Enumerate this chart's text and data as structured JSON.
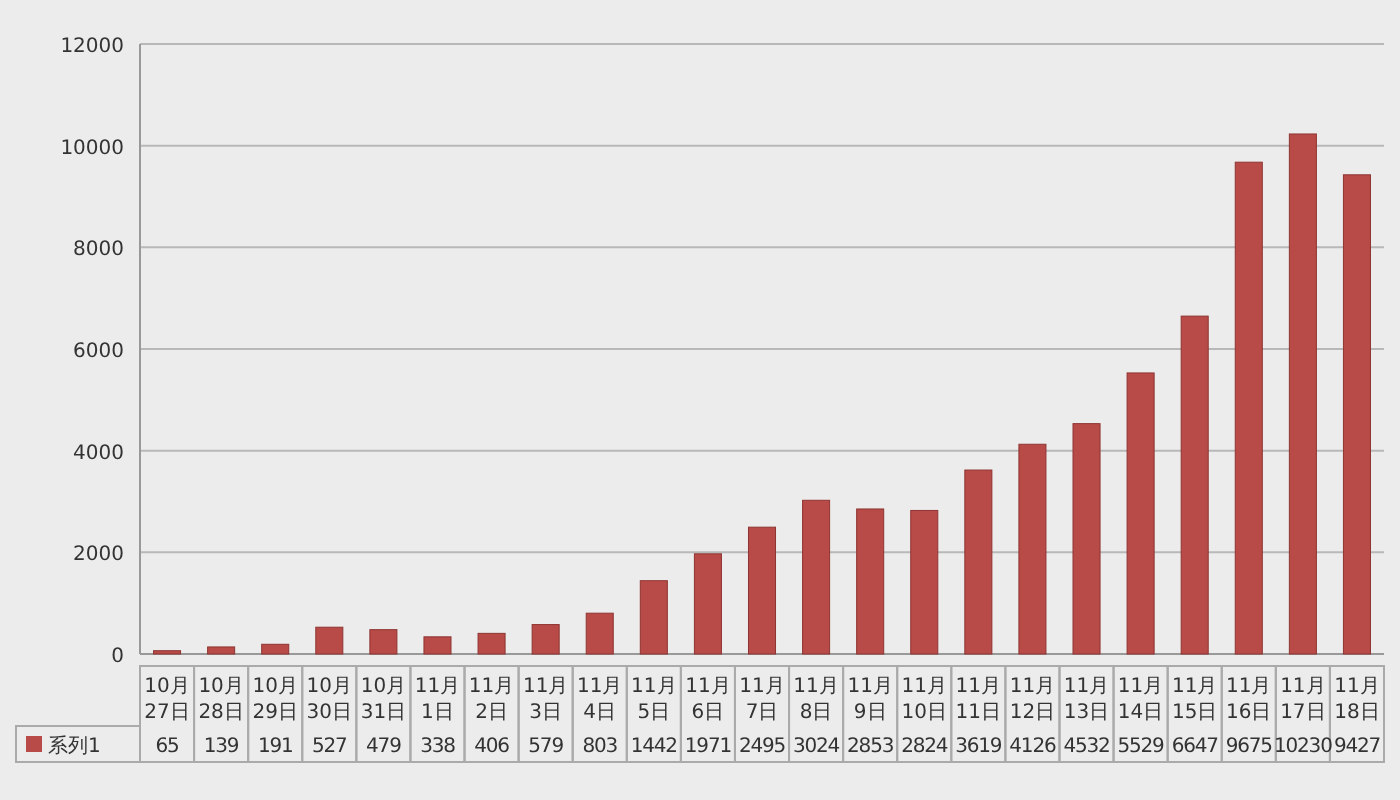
{
  "chart_data": {
    "type": "bar",
    "categories": [
      "10月27日",
      "10月28日",
      "10月29日",
      "10月30日",
      "10月31日",
      "11月1日",
      "11月2日",
      "11月3日",
      "11月4日",
      "11月5日",
      "11月6日",
      "11月7日",
      "11月8日",
      "11月9日",
      "11月10日",
      "11月11日",
      "11月12日",
      "11月13日",
      "11月14日",
      "11月15日",
      "11月16日",
      "11月17日",
      "11月18日"
    ],
    "series": [
      {
        "name": "系列1",
        "color": "#b84a47",
        "values": [
          65,
          139,
          191,
          527,
          479,
          338,
          406,
          579,
          803,
          1442,
          1971,
          2495,
          3024,
          2853,
          2824,
          3619,
          4126,
          4532,
          5529,
          6647,
          9675,
          10230,
          9427
        ]
      }
    ],
    "ylim": [
      0,
      12000
    ],
    "yticks": [
      0,
      2000,
      4000,
      6000,
      8000,
      10000,
      12000
    ],
    "grid": "y",
    "legend": "bottom",
    "data_labels": true
  }
}
